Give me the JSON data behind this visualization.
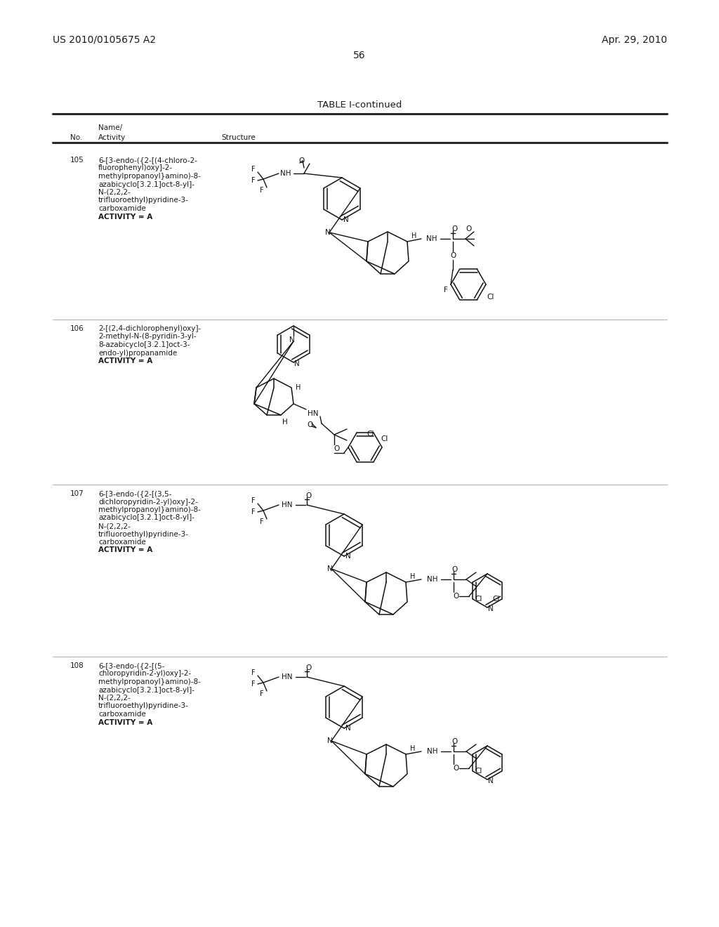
{
  "page_color": "#ffffff",
  "header_left": "US 2010/0105675 A2",
  "header_right": "Apr. 29, 2010",
  "page_number": "56",
  "table_title": "TABLE I-continued",
  "col1_header1": "Name/",
  "col1_header2": "Activity",
  "col1_label": "No.",
  "col2_label": "Structure",
  "entries": [
    {
      "no": "105",
      "name_lines": [
        "6-[3-endo-({2-[(4-chloro-2-",
        "fluorophenyl)oxy]-2-",
        "methylpropanoyl}amino)-8-",
        "azabicyclo[3.2.1]oct-8-yl]-",
        "N-(2,2,2-",
        "trifluoroethyl)pyridine-3-",
        "carboxamide",
        "ACTIVITY = A"
      ]
    },
    {
      "no": "106",
      "name_lines": [
        "2-[(2,4-dichlorophenyl)oxy]-",
        "2-methyl-N-(8-pyridin-3-yl-",
        "8-azabicyclo[3.2.1]oct-3-",
        "endo-yl)propanamide",
        "ACTIVITY = A"
      ]
    },
    {
      "no": "107",
      "name_lines": [
        "6-[3-endo-({2-[(3,5-",
        "dichloropyridin-2-yl)oxy]-2-",
        "methylpropanoyl}amino)-8-",
        "azabicyclo[3.2.1]oct-8-yl]-",
        "N-(2,2,2-",
        "trifluoroethyl)pyridine-3-",
        "carboxamide",
        "ACTIVITY = A"
      ]
    },
    {
      "no": "108",
      "name_lines": [
        "6-[3-endo-({2-[(5-",
        "chloropyridin-2-yl)oxy]-2-",
        "methylpropanoyl}amino)-8-",
        "azabicyclo[3.2.1]oct-8-yl]-",
        "N-(2,2,2-",
        "trifluoroethyl)pyridine-3-",
        "carboxamide",
        "ACTIVITY = A"
      ]
    }
  ],
  "text_color": "#1a1a1a",
  "line_color": "#2a2a2a",
  "font_size_header": 10,
  "font_size_body": 7.5,
  "font_size_title": 9.5,
  "row_tops": [
    215,
    455,
    690,
    935
  ],
  "row_bottoms": [
    455,
    690,
    935,
    1240
  ]
}
